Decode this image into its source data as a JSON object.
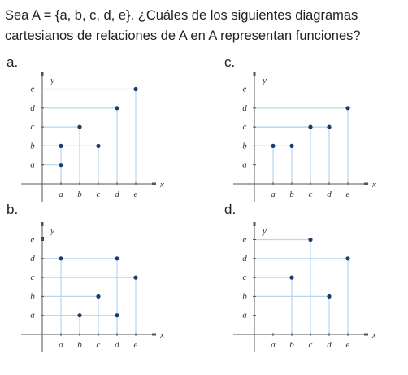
{
  "question": {
    "line1": "Sea A = {a, b, c, d, e}. ¿Cuáles de los siguientes diagramas",
    "line2": "cartesianos de relaciones de A en A representan funciones?"
  },
  "diagrams": [
    {
      "label": "a.",
      "x_label": "x",
      "y_label": "y",
      "x_ticks": [
        "a",
        "b",
        "c",
        "d",
        "e"
      ],
      "y_ticks": [
        "a",
        "b",
        "c",
        "d",
        "e"
      ],
      "points": [
        [
          "a",
          "a"
        ],
        [
          "a",
          "b"
        ],
        [
          "b",
          "c"
        ],
        [
          "c",
          "b"
        ],
        [
          "d",
          "d"
        ],
        [
          "e",
          "e"
        ]
      ]
    },
    {
      "label": "c.",
      "x_label": "x",
      "y_label": "y",
      "x_ticks": [
        "a",
        "b",
        "c",
        "d",
        "e"
      ],
      "y_ticks": [
        "a",
        "b",
        "c",
        "d",
        "e"
      ],
      "points": [
        [
          "a",
          "b"
        ],
        [
          "b",
          "b"
        ],
        [
          "c",
          "c"
        ],
        [
          "d",
          "c"
        ],
        [
          "e",
          "d"
        ]
      ]
    },
    {
      "label": "b.",
      "x_label": "x",
      "y_label": "y",
      "x_ticks": [
        "a",
        "b",
        "c",
        "d",
        "e"
      ],
      "y_ticks": [
        "a",
        "b",
        "c",
        "d",
        "e"
      ],
      "points": [
        [
          "a",
          "d"
        ],
        [
          "b",
          "a"
        ],
        [
          "c",
          "b"
        ],
        [
          "d",
          "d"
        ],
        [
          "d",
          "a"
        ],
        [
          "e",
          "c"
        ]
      ]
    },
    {
      "label": "d.",
      "x_label": "x",
      "y_label": "y",
      "x_ticks": [
        "a",
        "b",
        "c",
        "d",
        "e"
      ],
      "y_ticks": [
        "a",
        "b",
        "c",
        "d",
        "e"
      ],
      "points": [
        [
          "b",
          "c"
        ],
        [
          "c",
          "e"
        ],
        [
          "d",
          "b"
        ],
        [
          "e",
          "d"
        ]
      ]
    }
  ]
}
